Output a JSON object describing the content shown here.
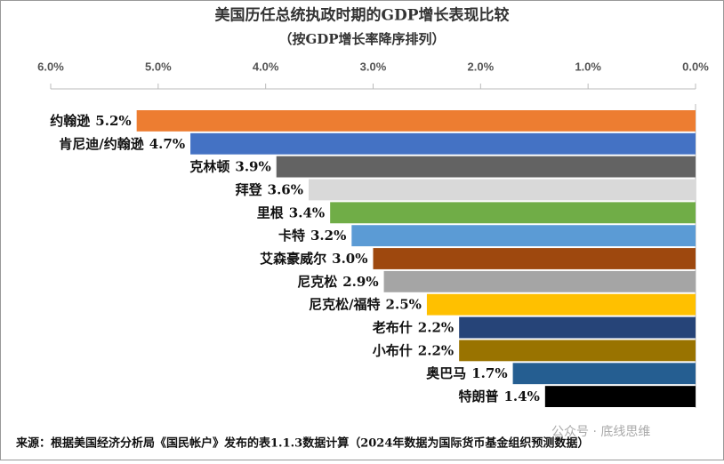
{
  "chart_data": {
    "type": "bar",
    "orientation": "horizontal",
    "title": "美国历任总统执政时期的GDP增长表现比较",
    "subtitle": "（按GDP增长率降序排列）",
    "categories": [
      "约翰逊",
      "肯尼迪/约翰逊",
      "克林顿",
      "拜登",
      "里根",
      "卡特",
      "艾森豪威尔",
      "尼克松",
      "尼克松/福特",
      "老布什",
      "小布什",
      "奥巴马",
      "特朗普"
    ],
    "values": [
      5.2,
      4.7,
      3.9,
      3.6,
      3.4,
      3.2,
      3.0,
      2.9,
      2.5,
      2.2,
      2.2,
      1.7,
      1.4
    ],
    "value_labels": [
      "5.2%",
      "4.7%",
      "3.9%",
      "3.6%",
      "3.4%",
      "3.2%",
      "3.0%",
      "2.9%",
      "2.5%",
      "2.2%",
      "2.2%",
      "1.7%",
      "1.4%"
    ],
    "colors": [
      "#ed7d31",
      "#4472c4",
      "#636363",
      "#d9d9d9",
      "#70ad47",
      "#5b9bd5",
      "#9e480e",
      "#a5a5a5",
      "#ffc000",
      "#264478",
      "#997300",
      "#255e91",
      "#000000"
    ],
    "xlim": [
      6,
      0
    ],
    "xticks": [
      {
        "value": 6,
        "label": "6.0%"
      },
      {
        "value": 5,
        "label": "5.0%"
      },
      {
        "value": 4,
        "label": "4.0%"
      },
      {
        "value": 3,
        "label": "3.0%"
      },
      {
        "value": 2,
        "label": "2.0%"
      },
      {
        "value": 1,
        "label": "1.0%"
      },
      {
        "value": 0,
        "label": "0.0%"
      }
    ],
    "source": "来源：根据美国经济分析局《国民帐户》发布的表1.1.3数据计算（2024年数据为国际货币基金组织预测数据）",
    "watermark": "公众号 · 底线思维"
  }
}
